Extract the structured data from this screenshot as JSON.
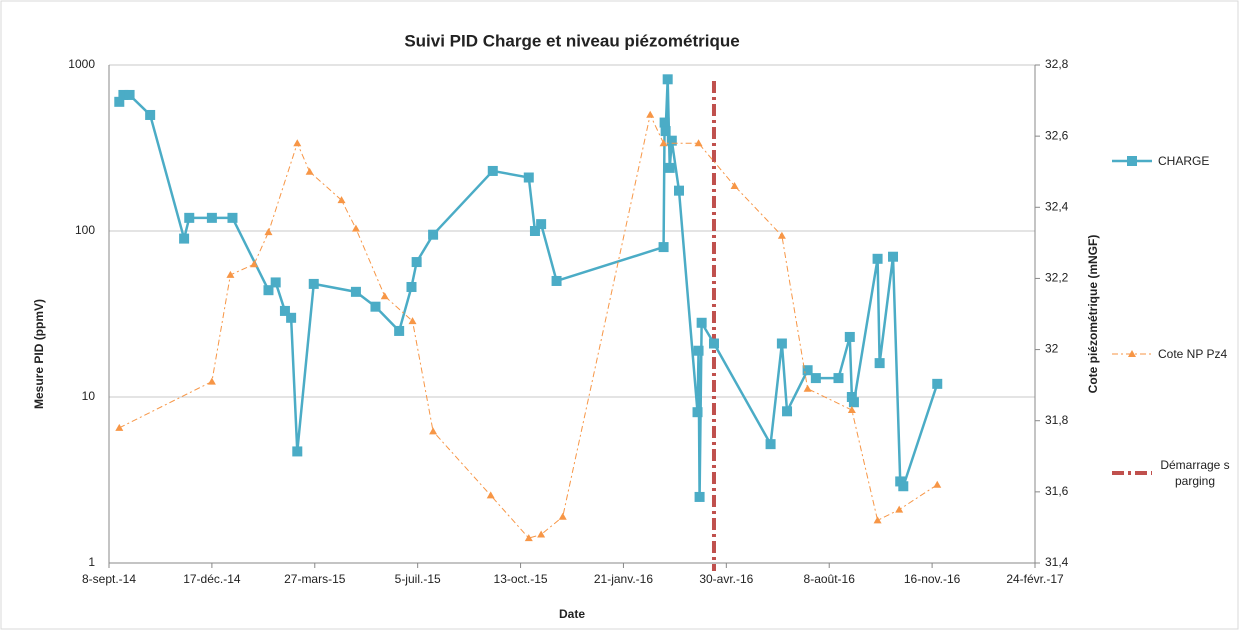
{
  "chart_data": {
    "type": "line",
    "title": "Suivi PID Charge et niveau piézométrique",
    "xlabel": "Date",
    "ylabel": "Mesure PID (ppmV)",
    "y2label": "Cote piézométrique  (mNGF)",
    "yscale": "log",
    "grid": true,
    "legend": "right",
    "xlim": [
      "2014-09-08",
      "2017-02-24"
    ],
    "xticks": [
      {
        "value": "2014-09-08",
        "label": "8-sept.-14"
      },
      {
        "value": "2014-12-17",
        "label": "17-déc.-14"
      },
      {
        "value": "2015-03-27",
        "label": "27-mars-15"
      },
      {
        "value": "2015-07-05",
        "label": "5-juil.-15"
      },
      {
        "value": "2015-10-13",
        "label": "13-oct.-15"
      },
      {
        "value": "2016-01-21",
        "label": "21-janv.-16"
      },
      {
        "value": "2016-04-30",
        "label": "30-avr.-16"
      },
      {
        "value": "2016-08-08",
        "label": "8-août-16"
      },
      {
        "value": "2016-11-16",
        "label": "16-nov.-16"
      },
      {
        "value": "2017-02-24",
        "label": "24-févr.-17"
      }
    ],
    "ylim": [
      1,
      1000
    ],
    "yticks": [
      1,
      10,
      100,
      1000
    ],
    "y2lim": [
      31.4,
      32.8
    ],
    "y2ticks": [
      {
        "value": 31.4,
        "label": "31,4"
      },
      {
        "value": 31.6,
        "label": "31,6"
      },
      {
        "value": 31.8,
        "label": "31,8"
      },
      32,
      {
        "value": 32.2,
        "label": "32,2"
      },
      {
        "value": 32.4,
        "label": "32,4"
      },
      {
        "value": 32.6,
        "label": "32,6"
      },
      {
        "value": 32.8,
        "label": "32,8"
      }
    ],
    "series": [
      {
        "name": "CHARGE",
        "color": "#4bacc6",
        "axis": "y",
        "x": [
          "2014-09-18",
          "2014-09-22",
          "2014-09-28",
          "2014-10-18",
          "2014-11-20",
          "2014-11-25",
          "2014-12-17",
          "2015-01-06",
          "2015-02-10",
          "2015-02-17",
          "2015-02-26",
          "2015-03-04",
          "2015-03-10",
          "2015-03-26",
          "2015-05-06",
          "2015-05-25",
          "2015-06-17",
          "2015-06-29",
          "2015-07-04",
          "2015-07-20",
          "2015-09-16",
          "2015-10-21",
          "2015-10-27",
          "2015-11-02",
          "2015-11-17",
          "2016-02-29",
          "2016-03-01",
          "2016-03-02",
          "2016-03-04",
          "2016-03-06",
          "2016-03-08",
          "2016-03-15",
          "2016-04-02",
          "2016-04-03",
          "2016-04-04",
          "2016-04-06",
          "2016-04-18",
          "2016-06-12",
          "2016-06-23",
          "2016-06-28",
          "2016-07-18",
          "2016-07-26",
          "2016-08-17",
          "2016-08-28",
          "2016-08-30",
          "2016-09-01",
          "2016-09-24",
          "2016-09-26",
          "2016-10-09",
          "2016-10-16",
          "2016-10-19",
          "2016-11-21"
        ],
        "values": [
          600,
          660,
          660,
          500,
          90,
          120,
          120,
          120,
          44,
          49,
          33,
          30,
          4.7,
          48,
          43,
          35,
          25,
          46,
          65,
          95,
          230,
          210,
          100,
          110,
          50,
          80,
          450,
          400,
          820,
          240,
          350,
          175,
          8.1,
          19,
          2.5,
          28,
          21,
          5.2,
          21,
          8.2,
          14.5,
          13,
          13,
          23,
          10,
          9.3,
          68,
          16,
          70,
          3.1,
          2.9,
          12
        ]
      },
      {
        "name": "Cote NP Pz4",
        "color": "#f79646",
        "axis": "y2",
        "x": [
          "2014-09-18",
          "2014-12-17",
          "2015-01-04",
          "2015-01-27",
          "2015-02-10",
          "2015-03-10",
          "2015-03-22",
          "2015-04-22",
          "2015-05-06",
          "2015-06-03",
          "2015-06-30",
          "2015-07-20",
          "2015-09-14",
          "2015-10-21",
          "2015-11-02",
          "2015-11-23",
          "2016-02-16",
          "2016-02-29",
          "2016-04-03",
          "2016-05-08",
          "2016-06-23",
          "2016-07-18",
          "2016-08-30",
          "2016-09-24",
          "2016-10-15",
          "2016-11-21"
        ],
        "values": [
          31.78,
          31.91,
          32.21,
          32.24,
          32.33,
          32.58,
          32.5,
          32.42,
          32.34,
          32.15,
          32.08,
          31.77,
          31.59,
          31.47,
          31.48,
          31.53,
          32.66,
          32.58,
          32.58,
          32.46,
          32.32,
          31.89,
          31.83,
          31.52,
          31.55,
          31.62
        ]
      }
    ],
    "vlines": [
      {
        "name": "Démarrage sparging",
        "color": "#c0504d",
        "x": "2016-04-18"
      }
    ]
  }
}
